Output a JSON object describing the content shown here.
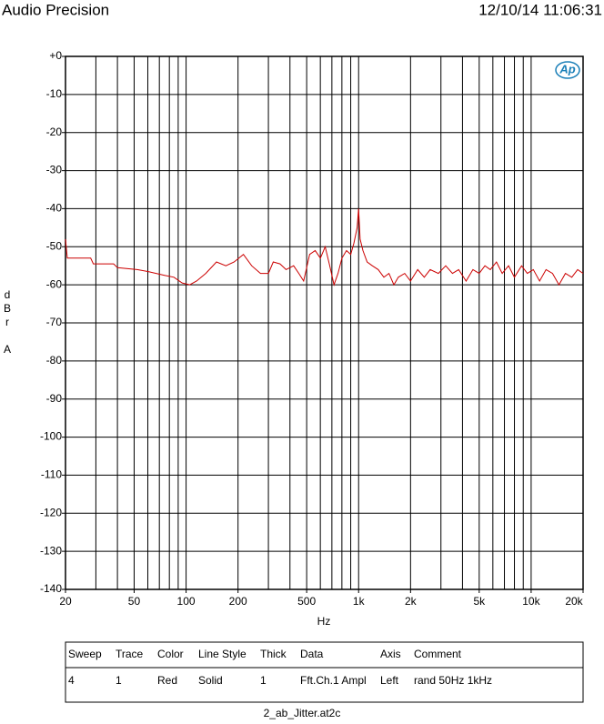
{
  "header": {
    "left": "Audio Precision",
    "right": "12/10/14 11:06:31"
  },
  "chart_data": {
    "type": "line",
    "logo": "Ap",
    "xlabel": "Hz",
    "ylabel": "dBr A",
    "xscale": "log",
    "grid": true,
    "xlim": [
      20,
      20000
    ],
    "ylim": [
      -140,
      0
    ],
    "xticks": [
      {
        "value": 20,
        "label": "20"
      },
      {
        "value": 50,
        "label": "50"
      },
      {
        "value": 100,
        "label": "100"
      },
      {
        "value": 200,
        "label": "200"
      },
      {
        "value": 500,
        "label": "500"
      },
      {
        "value": 1000,
        "label": "1k"
      },
      {
        "value": 2000,
        "label": "2k"
      },
      {
        "value": 5000,
        "label": "5k"
      },
      {
        "value": 10000,
        "label": "10k"
      },
      {
        "value": 20000,
        "label": "20k"
      }
    ],
    "xminorticks": [
      30,
      40,
      60,
      70,
      80,
      90,
      300,
      400,
      600,
      700,
      800,
      900,
      3000,
      4000,
      6000,
      7000,
      8000,
      9000
    ],
    "yticks": [
      {
        "value": 0,
        "label": "+0"
      },
      -10,
      -20,
      -30,
      -40,
      -50,
      -60,
      -70,
      -80,
      -90,
      -100,
      -110,
      -120,
      -130,
      -140
    ],
    "series": [
      {
        "name": "Fft.Ch.1 Ampl",
        "color": "#cc0000",
        "x": [
          20,
          20.5,
          28,
          29,
          38,
          40,
          52,
          60,
          75,
          85,
          95,
          105,
          115,
          130,
          150,
          170,
          190,
          215,
          240,
          270,
          300,
          320,
          350,
          380,
          420,
          450,
          480,
          520,
          560,
          600,
          640,
          680,
          720,
          760,
          800,
          850,
          900,
          940,
          980,
          1000,
          1020,
          1060,
          1120,
          1200,
          1300,
          1400,
          1500,
          1600,
          1700,
          1850,
          2000,
          2200,
          2400,
          2600,
          2900,
          3200,
          3500,
          3800,
          4200,
          4600,
          5000,
          5400,
          5800,
          6300,
          6800,
          7400,
          8000,
          8800,
          9500,
          10300,
          11200,
          12200,
          13300,
          14500,
          15800,
          17200,
          18600,
          20000
        ],
        "values": [
          -48,
          -53,
          -53,
          -54.5,
          -54.5,
          -55.5,
          -56,
          -56.5,
          -57.5,
          -58,
          -59.5,
          -60,
          -59,
          -57,
          -54,
          -55,
          -54,
          -52,
          -55,
          -57,
          -57,
          -54,
          -54.5,
          -56,
          -55,
          -57,
          -59,
          -52,
          -51,
          -53,
          -50,
          -55,
          -60,
          -57,
          -53,
          -51,
          -52,
          -49,
          -45,
          -40,
          -48,
          -51,
          -54,
          -55,
          -56,
          -58,
          -57,
          -60,
          -58,
          -57,
          -59,
          -56,
          -58,
          -56,
          -57,
          -55,
          -57,
          -56,
          -59,
          -56,
          -57,
          -55,
          -56,
          -54,
          -57,
          -55,
          -58,
          -55,
          -57,
          -56,
          -59,
          -56,
          -57,
          -60,
          -57,
          -58,
          -56,
          -57
        ]
      }
    ]
  },
  "legend_table": {
    "headers": [
      "Sweep",
      "Trace",
      "Color",
      "Line Style",
      "Thick",
      "Data",
      "Axis",
      "Comment"
    ],
    "rows": [
      [
        4,
        1,
        "Red",
        "Solid",
        1,
        "Fft.Ch.1 Ampl",
        "Left",
        "rand 50Hz 1kHz"
      ]
    ]
  },
  "footer": "2_ab_Jitter.at2c"
}
